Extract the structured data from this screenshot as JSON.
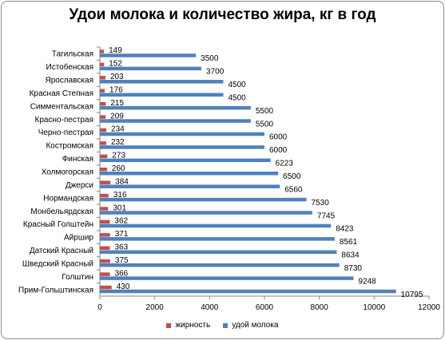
{
  "chart_data": {
    "type": "bar",
    "orientation": "horizontal",
    "title": "Удои молока и количество жира, кг в год",
    "categories": [
      "Тагильская",
      "Истобенская",
      "Ярославская",
      "Красная Степная",
      "Симментальская",
      "Красно-пестрая",
      "Черно-пестрая",
      "Костромская",
      "Финская",
      "Холмогорская",
      "Джерси",
      "Нормандская",
      "Монбельярдская",
      "Красный Голштейн",
      "Айршир",
      "Датский Красный",
      "Шведский Красный",
      "Голштин",
      "Прим-Гольштинская"
    ],
    "series": [
      {
        "name": "жирность",
        "color": "#c0504d",
        "values": [
          149,
          152,
          203,
          176,
          215,
          209,
          234,
          232,
          273,
          260,
          384,
          316,
          301,
          362,
          371,
          363,
          375,
          366,
          430
        ]
      },
      {
        "name": "удой молока",
        "color": "#4f81bd",
        "values": [
          3500,
          3700,
          4500,
          4500,
          5500,
          5500,
          6000,
          6000,
          6223,
          6500,
          6560,
          7530,
          7745,
          8423,
          8561,
          8634,
          8730,
          9248,
          10795
        ]
      }
    ],
    "xlim": [
      0,
      12000
    ],
    "xticks": [
      0,
      2000,
      4000,
      6000,
      8000,
      10000,
      12000
    ],
    "grid": false,
    "legend_position": "bottom"
  }
}
